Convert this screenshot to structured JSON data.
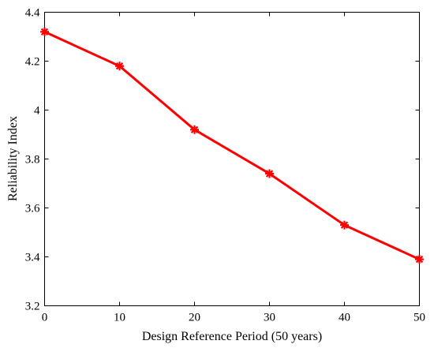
{
  "chart_data": {
    "type": "line",
    "xlabel": "Design Reference Period (50 years)",
    "ylabel": "Reliability Index",
    "xlim": [
      0,
      50
    ],
    "ylim": [
      3.2,
      4.4
    ],
    "xticks": [
      0,
      10,
      20,
      30,
      40,
      50
    ],
    "yticks": [
      3.2,
      3.4,
      3.6,
      3.8,
      4.0,
      4.2,
      4.4
    ],
    "xtick_labels": [
      "0",
      "10",
      "20",
      "30",
      "40",
      "50"
    ],
    "ytick_labels": [
      "3.2",
      "3.4",
      "3.6",
      "3.8",
      "4",
      "4.2",
      "4.4"
    ],
    "grid": false,
    "series": [
      {
        "x": [
          0,
          10,
          20,
          30,
          40,
          50
        ],
        "y": [
          4.32,
          4.18,
          3.92,
          3.74,
          3.53,
          3.39
        ],
        "color": "#ff0000",
        "marker": "asterisk"
      }
    ]
  }
}
